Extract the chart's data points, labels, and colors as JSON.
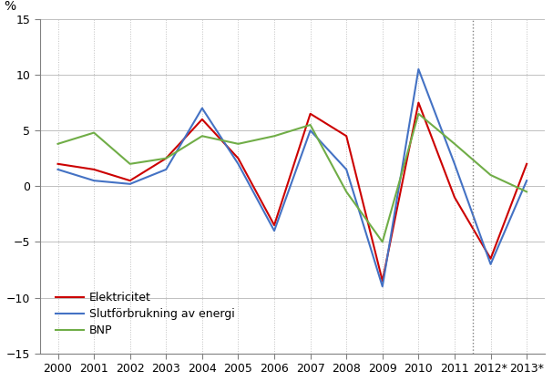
{
  "years": [
    2000,
    2001,
    2002,
    2003,
    2004,
    2005,
    2006,
    2007,
    2008,
    2009,
    2010,
    2011,
    2012,
    2013
  ],
  "year_labels": [
    "2000",
    "2001",
    "2002",
    "2003",
    "2004",
    "2005",
    "2006",
    "2007",
    "2008",
    "2009",
    "2010",
    "2011",
    "2012*",
    "2013*"
  ],
  "elektricitet": [
    2.0,
    1.5,
    0.5,
    2.5,
    6.0,
    2.5,
    -3.5,
    6.5,
    4.5,
    -8.5,
    7.5,
    -1.0,
    -6.5,
    2.0
  ],
  "slutforbrukning": [
    1.5,
    0.5,
    0.2,
    1.5,
    7.0,
    2.0,
    -4.0,
    5.0,
    1.5,
    -9.0,
    10.5,
    2.0,
    -7.0,
    0.5
  ],
  "bnp": [
    3.8,
    4.8,
    2.0,
    2.5,
    4.5,
    3.8,
    4.5,
    5.5,
    -0.5,
    -5.0,
    6.5,
    3.8,
    1.0,
    -0.5
  ],
  "elektricitet_color": "#cc0000",
  "slutforbrukning_color": "#4472c4",
  "bnp_color": "#70ad47",
  "ylabel": "%",
  "ylim": [
    -15,
    15
  ],
  "yticks": [
    -15,
    -10,
    -5,
    0,
    5,
    10,
    15
  ],
  "legend_elektricitet": "Elektricitet",
  "legend_slutforbrukning": "Slutförbrukning av energi",
  "legend_bnp": "BNP",
  "background_color": "#ffffff",
  "dotted_line_x": 2011.5
}
